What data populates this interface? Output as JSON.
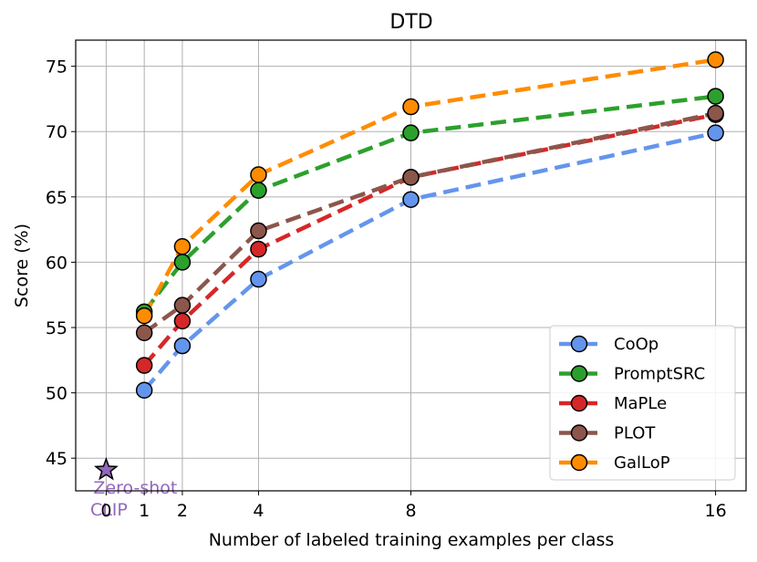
{
  "chart_data": {
    "type": "line",
    "title": "DTD",
    "xlabel": "Number of labeled training examples per class",
    "ylabel": "Score (%)",
    "x": [
      1,
      2,
      4,
      8,
      16
    ],
    "x_ticks": [
      0,
      1,
      2,
      4,
      8,
      16
    ],
    "xlim": [
      -0.8,
      16.8
    ],
    "ylim": [
      42.5,
      77
    ],
    "y_ticks": [
      45,
      50,
      55,
      60,
      65,
      70,
      75
    ],
    "grid": true,
    "legend_position": "lower-right",
    "series": [
      {
        "name": "CoOp",
        "color": "#6495ED",
        "values": [
          50.2,
          53.6,
          58.7,
          64.8,
          69.9
        ]
      },
      {
        "name": "PromptSRC",
        "color": "#2CA02C",
        "values": [
          56.2,
          60.0,
          65.5,
          69.9,
          72.7
        ]
      },
      {
        "name": "MaPLe",
        "color": "#D62728",
        "values": [
          52.1,
          55.5,
          61.0,
          66.5,
          71.3
        ]
      },
      {
        "name": "PLOT",
        "color": "#8C564B",
        "values": [
          54.6,
          56.7,
          62.4,
          66.5,
          71.4
        ]
      },
      {
        "name": "GalLoP",
        "color": "#FF8C00",
        "values": [
          55.9,
          61.2,
          66.7,
          71.9,
          75.5
        ]
      }
    ],
    "zero_shot": {
      "label_line1": "Zero-shot",
      "label_line2": "CLIP",
      "x": 0,
      "y": 44.1,
      "color": "#9467BD"
    }
  }
}
